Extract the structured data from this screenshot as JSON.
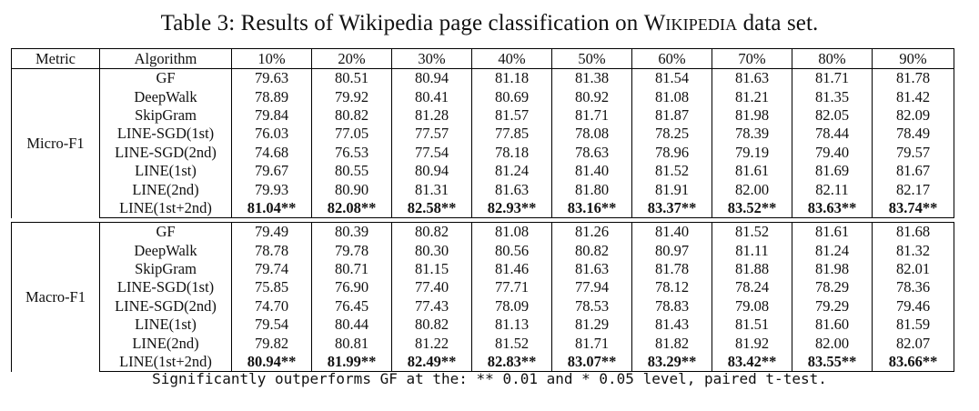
{
  "caption": {
    "prefix": "Table 3: Results of Wikipedia page classification on ",
    "dataset": "Wikipedia",
    "suffix": " data set."
  },
  "columns": [
    "Metric",
    "Algorithm",
    "10%",
    "20%",
    "30%",
    "40%",
    "50%",
    "60%",
    "70%",
    "80%",
    "90%"
  ],
  "groups": [
    {
      "metric": "Micro-F1",
      "rows": [
        {
          "algorithm": "GF",
          "values": [
            "79.63",
            "80.51",
            "80.94",
            "81.18",
            "81.38",
            "81.54",
            "81.63",
            "81.71",
            "81.78"
          ]
        },
        {
          "algorithm": "DeepWalk",
          "values": [
            "78.89",
            "79.92",
            "80.41",
            "80.69",
            "80.92",
            "81.08",
            "81.21",
            "81.35",
            "81.42"
          ]
        },
        {
          "algorithm": "SkipGram",
          "values": [
            "79.84",
            "80.82",
            "81.28",
            "81.57",
            "81.71",
            "81.87",
            "81.98",
            "82.05",
            "82.09"
          ]
        },
        {
          "algorithm": "LINE-SGD(1st)",
          "values": [
            "76.03",
            "77.05",
            "77.57",
            "77.85",
            "78.08",
            "78.25",
            "78.39",
            "78.44",
            "78.49"
          ]
        },
        {
          "algorithm": "LINE-SGD(2nd)",
          "values": [
            "74.68",
            "76.53",
            "77.54",
            "78.18",
            "78.63",
            "78.96",
            "79.19",
            "79.40",
            "79.57"
          ]
        },
        {
          "algorithm": "LINE(1st)",
          "values": [
            "79.67",
            "80.55",
            "80.94",
            "81.24",
            "81.40",
            "81.52",
            "81.61",
            "81.69",
            "81.67"
          ]
        },
        {
          "algorithm": "LINE(2nd)",
          "values": [
            "79.93",
            "80.90",
            "81.31",
            "81.63",
            "81.80",
            "81.91",
            "82.00",
            "82.11",
            "82.17"
          ]
        },
        {
          "algorithm": "LINE(1st+2nd)",
          "best": true,
          "values": [
            "81.04**",
            "82.08**",
            "82.58**",
            "82.93**",
            "83.16**",
            "83.37**",
            "83.52**",
            "83.63**",
            "83.74**"
          ]
        }
      ]
    },
    {
      "metric": "Macro-F1",
      "rows": [
        {
          "algorithm": "GF",
          "values": [
            "79.49",
            "80.39",
            "80.82",
            "81.08",
            "81.26",
            "81.40",
            "81.52",
            "81.61",
            "81.68"
          ]
        },
        {
          "algorithm": "DeepWalk",
          "values": [
            "78.78",
            "79.78",
            "80.30",
            "80.56",
            "80.82",
            "80.97",
            "81.11",
            "81.24",
            "81.32"
          ]
        },
        {
          "algorithm": "SkipGram",
          "values": [
            "79.74",
            "80.71",
            "81.15",
            "81.46",
            "81.63",
            "81.78",
            "81.88",
            "81.98",
            "82.01"
          ]
        },
        {
          "algorithm": "LINE-SGD(1st)",
          "values": [
            "75.85",
            "76.90",
            "77.40",
            "77.71",
            "77.94",
            "78.12",
            "78.24",
            "78.29",
            "78.36"
          ]
        },
        {
          "algorithm": "LINE-SGD(2nd)",
          "values": [
            "74.70",
            "76.45",
            "77.43",
            "78.09",
            "78.53",
            "78.83",
            "79.08",
            "79.29",
            "79.46"
          ]
        },
        {
          "algorithm": "LINE(1st)",
          "values": [
            "79.54",
            "80.44",
            "80.82",
            "81.13",
            "81.29",
            "81.43",
            "81.51",
            "81.60",
            "81.59"
          ]
        },
        {
          "algorithm": "LINE(2nd)",
          "values": [
            "79.82",
            "80.81",
            "81.22",
            "81.52",
            "81.71",
            "81.82",
            "81.92",
            "82.00",
            "82.07"
          ]
        },
        {
          "algorithm": "LINE(1st+2nd)",
          "best": true,
          "values": [
            "80.94**",
            "81.99**",
            "82.49**",
            "82.83**",
            "83.07**",
            "83.29**",
            "83.42**",
            "83.55**",
            "83.66**"
          ]
        }
      ]
    }
  ],
  "footnote": "Significantly outperforms GF at the: ** 0.01 and * 0.05 level, paired t-test."
}
